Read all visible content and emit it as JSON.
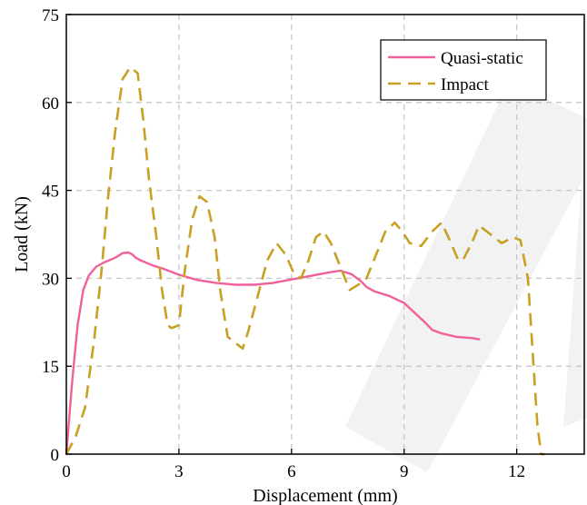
{
  "chart_data": {
    "type": "line",
    "title": "",
    "xlabel": "Displacement (mm)",
    "ylabel": "Load (kN)",
    "xlim": [
      0,
      13.8
    ],
    "ylim": [
      0,
      75
    ],
    "xticks": [
      0,
      3,
      6,
      9,
      12
    ],
    "yticks": [
      0,
      15,
      30,
      45,
      60,
      75
    ],
    "grid": true,
    "legend_position": "top-right",
    "series": [
      {
        "name": "Quasi-static",
        "color": "#f0609a",
        "style": "solid",
        "x": [
          0,
          0.15,
          0.3,
          0.45,
          0.6,
          0.8,
          1.0,
          1.3,
          1.5,
          1.65,
          1.75,
          1.85,
          2.0,
          2.3,
          2.6,
          3.0,
          3.5,
          4.0,
          4.5,
          5.0,
          5.5,
          6.0,
          6.5,
          7.0,
          7.3,
          7.6,
          7.85,
          8.0,
          8.2,
          8.6,
          9.0,
          9.3,
          9.55,
          9.75,
          10.0,
          10.4,
          10.8,
          11.0
        ],
        "y": [
          0,
          12,
          22,
          28,
          30.5,
          32,
          32.7,
          33.5,
          34.3,
          34.4,
          34.1,
          33.5,
          33.0,
          32.2,
          31.6,
          30.6,
          29.7,
          29.2,
          28.9,
          28.9,
          29.2,
          29.8,
          30.4,
          31.0,
          31.3,
          30.7,
          29.5,
          28.5,
          27.8,
          27.0,
          25.8,
          24.0,
          22.5,
          21.2,
          20.6,
          20.0,
          19.8,
          19.6
        ]
      },
      {
        "name": "Impact",
        "color": "#c7a024",
        "style": "dashed",
        "x": [
          0,
          0.25,
          0.5,
          0.75,
          0.95,
          1.1,
          1.3,
          1.5,
          1.7,
          1.9,
          2.05,
          2.2,
          2.4,
          2.55,
          2.7,
          2.8,
          3.0,
          3.15,
          3.35,
          3.55,
          3.75,
          3.95,
          4.1,
          4.3,
          4.5,
          4.7,
          4.85,
          5.1,
          5.35,
          5.6,
          5.85,
          6.05,
          6.25,
          6.45,
          6.65,
          6.85,
          7.05,
          7.3,
          7.55,
          7.8,
          8.0,
          8.25,
          8.5,
          8.75,
          8.95,
          9.15,
          9.45,
          9.75,
          10.0,
          10.25,
          10.45,
          10.6,
          10.8,
          11.0,
          11.3,
          11.6,
          11.9,
          12.1,
          12.3,
          12.45,
          12.55,
          12.65,
          12.75
        ],
        "y": [
          0,
          3,
          8,
          20,
          32,
          43,
          55,
          64,
          66,
          65,
          57,
          47,
          37,
          28,
          22,
          21.5,
          22,
          31,
          40,
          44,
          43,
          37,
          28,
          20,
          19,
          18,
          21,
          27,
          33,
          36,
          34,
          31,
          30,
          33,
          37,
          38,
          36,
          32,
          28,
          29,
          30,
          34,
          38,
          39.5,
          38,
          36,
          35.5,
          38,
          39.5,
          36,
          33,
          33.5,
          36,
          39,
          37.5,
          36,
          37,
          36.5,
          30,
          15,
          5,
          0,
          0
        ]
      }
    ]
  }
}
